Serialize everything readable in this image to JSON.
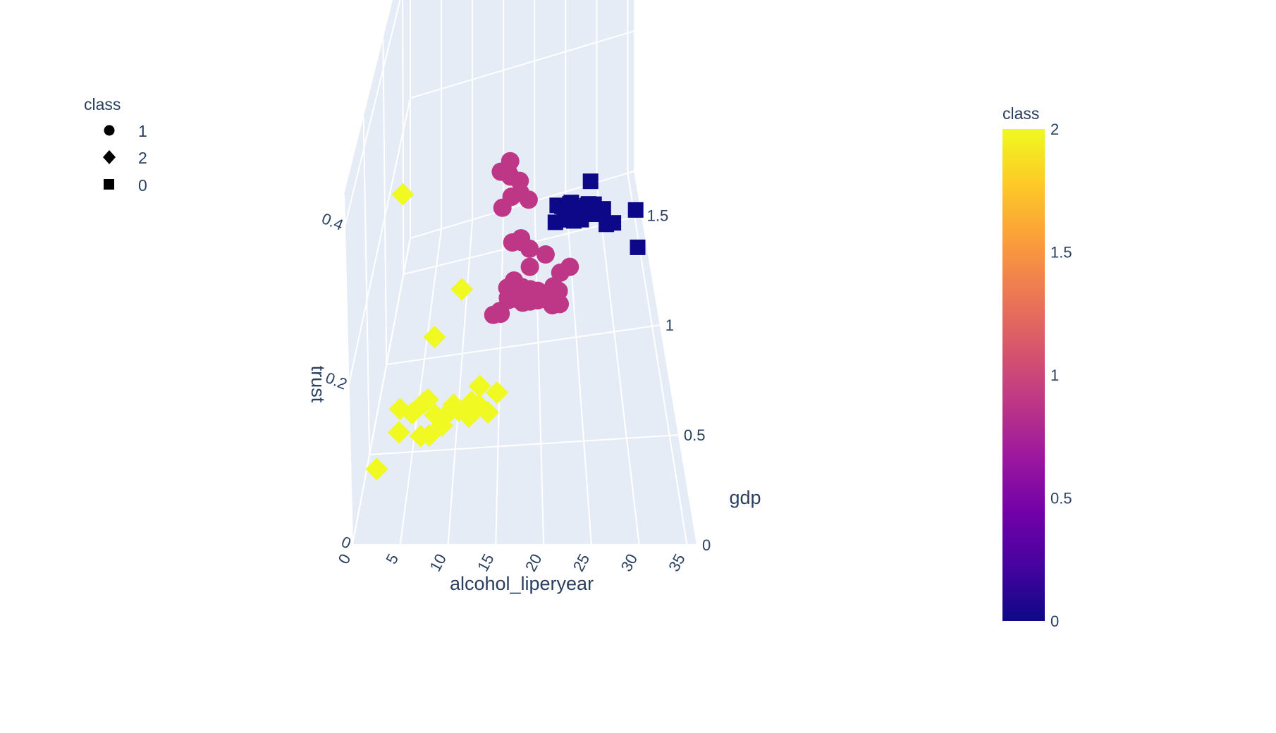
{
  "chart_data": {
    "type": "scatter",
    "dimensions": "3d",
    "axes": {
      "x": {
        "label": "alcohol_liperyear",
        "range": [
          0,
          36
        ],
        "ticks": [
          "0",
          "5",
          "10",
          "15",
          "20",
          "25",
          "30",
          "35"
        ]
      },
      "y": {
        "label": "gdp",
        "range": [
          0,
          1.7
        ],
        "ticks": [
          "0",
          "0.5",
          "1",
          "1.5"
        ]
      },
      "z": {
        "label": "trust",
        "range": [
          0,
          0.44
        ],
        "ticks": [
          "0",
          "0.2",
          "0.4"
        ]
      }
    },
    "legend": {
      "title": "class",
      "placement": "top-left",
      "items": [
        {
          "label": "1",
          "symbol": "circle"
        },
        {
          "label": "2",
          "symbol": "diamond"
        },
        {
          "label": "0",
          "symbol": "square"
        }
      ]
    },
    "colorbar": {
      "title": "class",
      "placement": "right",
      "range": [
        0,
        2
      ],
      "ticks": [
        "0",
        "0.5",
        "1",
        "1.5",
        "2"
      ],
      "colors": [
        "#0d0887",
        "#46039f",
        "#7201a8",
        "#9c179e",
        "#bd3786",
        "#d8576b",
        "#ed7953",
        "#fb9f3a",
        "#fdca26",
        "#f0f921"
      ]
    },
    "grid": true,
    "series": [
      {
        "class": "2",
        "symbol": "diamond",
        "color": "#f0f921",
        "points": [
          [
            6,
            0.05,
            0.43
          ],
          [
            12,
            0.05,
            0.31
          ],
          [
            9,
            0.05,
            0.25
          ],
          [
            8,
            0.1,
            0.16
          ],
          [
            5,
            0.05,
            0.13
          ],
          [
            6,
            0.2,
            0.12
          ],
          [
            7,
            0.3,
            0.11
          ],
          [
            10,
            0.2,
            0.12
          ],
          [
            11,
            0.25,
            0.11
          ],
          [
            12,
            0.3,
            0.09
          ],
          [
            13,
            0.4,
            0.08
          ],
          [
            9,
            0.3,
            0.08
          ],
          [
            6,
            0.5,
            0.02
          ],
          [
            7,
            0.5,
            0.02
          ],
          [
            2,
            0.2,
            0.05
          ],
          [
            4,
            0.4,
            0.08
          ],
          [
            14,
            0.4,
            0.07
          ],
          [
            15,
            0.5,
            0.07
          ],
          [
            12,
            0.5,
            0.06
          ],
          [
            10,
            0.45,
            0.07
          ],
          [
            8,
            0.4,
            0.07
          ],
          [
            13,
            0.5,
            0.08
          ]
        ]
      },
      {
        "class": "1",
        "symbol": "circle",
        "color": "#bd3786",
        "points": [
          [
            17,
            0.3,
            0.4
          ],
          [
            16,
            0.4,
            0.38
          ],
          [
            17,
            0.5,
            0.37
          ],
          [
            17,
            0.5,
            0.35
          ],
          [
            18,
            0.6,
            0.32
          ],
          [
            16,
            0.5,
            0.31
          ],
          [
            17,
            0.6,
            0.3
          ],
          [
            18,
            0.7,
            0.28
          ],
          [
            19,
            0.7,
            0.27
          ],
          [
            17,
            0.6,
            0.24
          ],
          [
            18,
            0.7,
            0.22
          ],
          [
            18,
            0.8,
            0.19
          ],
          [
            19,
            0.8,
            0.18
          ],
          [
            21,
            0.8,
            0.17
          ],
          [
            24,
            0.8,
            0.15
          ],
          [
            17,
            0.8,
            0.14
          ],
          [
            18,
            0.8,
            0.13
          ],
          [
            19,
            0.9,
            0.13
          ],
          [
            17,
            0.9,
            0.11
          ],
          [
            18,
            0.9,
            0.1
          ],
          [
            19,
            0.9,
            0.1
          ],
          [
            22,
            0.9,
            0.1
          ],
          [
            23,
            1.0,
            0.09
          ],
          [
            16,
            1.0,
            0.08
          ],
          [
            17,
            1.0,
            0.07
          ],
          [
            18,
            1.0,
            0.07
          ],
          [
            19,
            1.0,
            0.07
          ],
          [
            20,
            1.0,
            0.07
          ],
          [
            21,
            1.0,
            0.06
          ],
          [
            22,
            1.0,
            0.06
          ],
          [
            15,
            1.0,
            0.05
          ],
          [
            16,
            1.1,
            0.04
          ],
          [
            17,
            1.1,
            0.04
          ],
          [
            18,
            1.1,
            0.03
          ],
          [
            19,
            1.1,
            0.03
          ],
          [
            20,
            1.1,
            0.03
          ],
          [
            21,
            1.1,
            0.03
          ],
          [
            22,
            1.1,
            0.02
          ],
          [
            23,
            1.1,
            0.02
          ],
          [
            14,
            1.1,
            0.02
          ],
          [
            15,
            1.1,
            0.02
          ],
          [
            16,
            1.2,
            0.01
          ],
          [
            17,
            1.2,
            0.01
          ],
          [
            18,
            1.2,
            0.01
          ],
          [
            19,
            1.2,
            0.01
          ],
          [
            20,
            1.2,
            0.01
          ],
          [
            21,
            1.2,
            0.01
          ],
          [
            22,
            1.2,
            0.01
          ],
          [
            23,
            1.2,
            0.01
          ]
        ]
      },
      {
        "class": "0",
        "symbol": "square",
        "color": "#0d0887",
        "points": [
          [
            26,
            0.2,
            0.41
          ],
          [
            25,
            0.7,
            0.24
          ],
          [
            25,
            0.9,
            0.19
          ],
          [
            27,
            0.9,
            0.19
          ],
          [
            28,
            0.9,
            0.19
          ],
          [
            26,
            1.0,
            0.17
          ],
          [
            24,
            1.0,
            0.16
          ],
          [
            27,
            1.1,
            0.15
          ],
          [
            29,
            1.1,
            0.14
          ],
          [
            33,
            1.0,
            0.16
          ],
          [
            25,
            1.1,
            0.13
          ],
          [
            26,
            1.1,
            0.13
          ],
          [
            27,
            1.2,
            0.12
          ],
          [
            28,
            1.2,
            0.12
          ],
          [
            29,
            1.2,
            0.11
          ],
          [
            24,
            1.2,
            0.11
          ],
          [
            23,
            1.3,
            0.1
          ],
          [
            25,
            1.3,
            0.1
          ],
          [
            26,
            1.3,
            0.09
          ],
          [
            24,
            1.3,
            0.08
          ],
          [
            25,
            1.4,
            0.07
          ],
          [
            27,
            1.4,
            0.06
          ],
          [
            30,
            1.3,
            0.06
          ],
          [
            31,
            1.3,
            0.06
          ],
          [
            34,
            1.2,
            0.05
          ],
          [
            24,
            1.5,
            0.04
          ],
          [
            25,
            1.5,
            0.03
          ],
          [
            26,
            1.5,
            0.02
          ],
          [
            23,
            1.5,
            0.02
          ]
        ]
      }
    ]
  }
}
